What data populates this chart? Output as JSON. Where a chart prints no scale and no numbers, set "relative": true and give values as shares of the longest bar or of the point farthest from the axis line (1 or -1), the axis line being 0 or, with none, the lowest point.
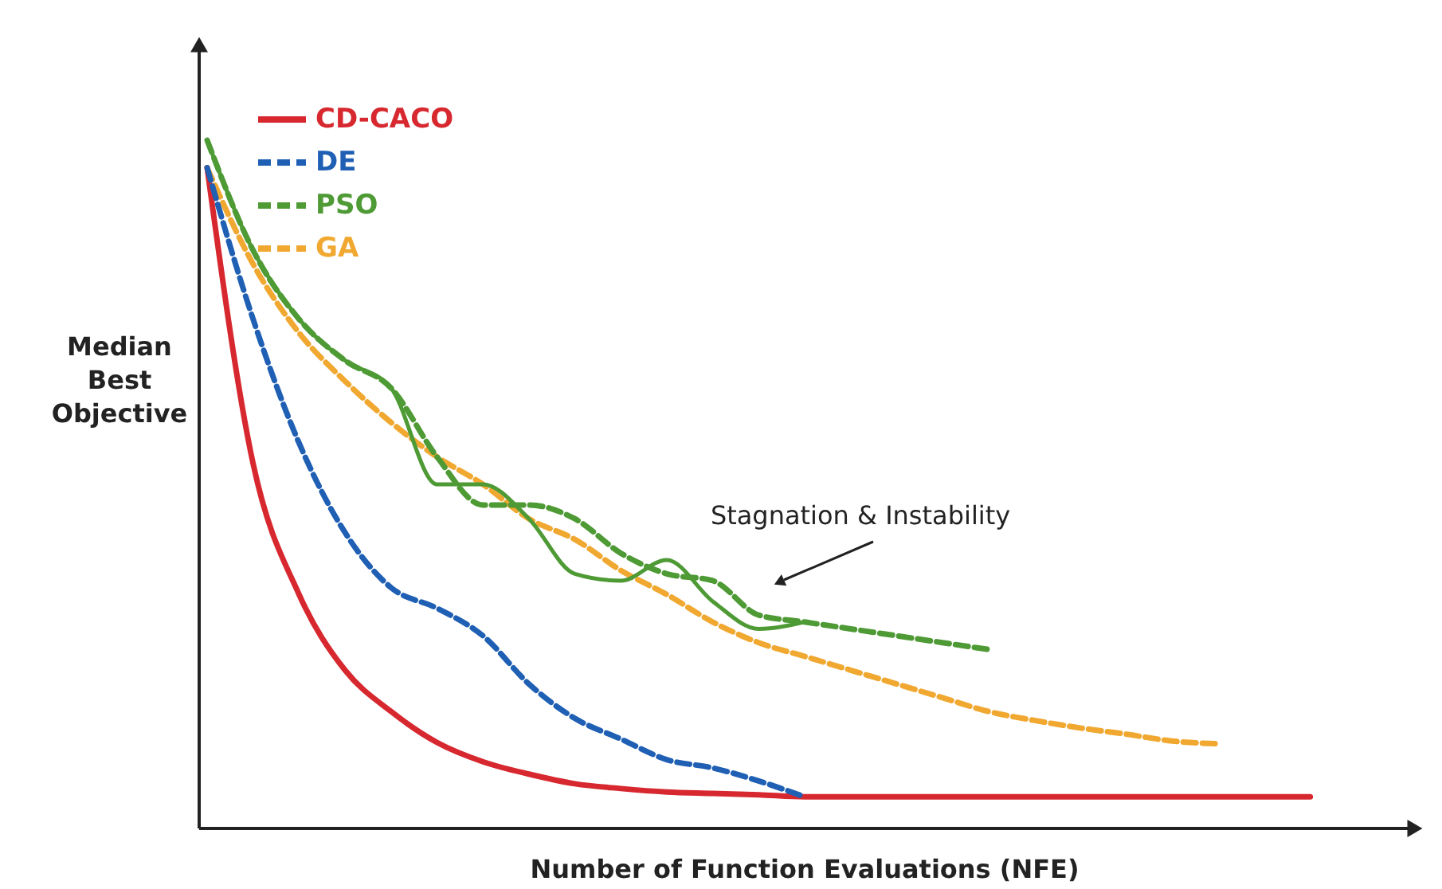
{
  "chart_data": {
    "type": "line",
    "relative": true,
    "xlabel": "Number of Function Evaluations (NFE)",
    "ylabel": "Median Best Objective",
    "legend": "top left",
    "grid": false,
    "marker": "none",
    "categories": [
      null,
      null,
      null,
      null,
      null,
      null,
      null,
      null,
      null,
      null,
      null,
      null,
      null,
      null,
      null,
      null,
      null,
      null,
      null,
      null,
      null,
      null,
      null,
      null,
      null
    ],
    "series": [
      {
        "name": "CD-CACO",
        "color": "#d7282f",
        "line_style": "solid",
        "values": [
          0.96,
          0.53,
          0.34,
          0.23,
          0.17,
          0.125,
          0.097,
          0.079,
          0.065,
          0.058,
          0.053,
          0.051,
          0.049,
          0.046,
          0.046,
          0.046,
          0.046,
          0.046,
          0.046,
          0.046,
          0.046,
          0.046,
          0.046,
          0.046,
          0.046
        ]
      },
      {
        "name": "DE",
        "color": "#1f5fb4",
        "line_style": "dashed",
        "values": [
          0.96,
          0.74,
          0.56,
          0.43,
          0.35,
          0.32,
          0.28,
          0.21,
          0.16,
          0.13,
          0.1,
          0.088,
          0.069,
          0.046,
          null,
          null,
          null,
          null,
          null,
          null,
          null,
          null,
          null,
          null,
          null
        ]
      },
      {
        "name": "PSO",
        "color": "#4e9a35",
        "line_style": "dashed",
        "values": [
          1.0,
          0.84,
          0.74,
          0.68,
          0.64,
          0.54,
          0.47,
          0.47,
          0.45,
          0.4,
          0.37,
          0.36,
          0.31,
          0.3,
          0.29,
          0.28,
          0.27,
          0.26,
          null,
          null,
          null,
          null,
          null,
          null,
          null
        ]
      },
      {
        "color": "#4e9a35",
        "line_style": "solid",
        "values": [
          1.0,
          0.84,
          0.74,
          0.68,
          0.64,
          0.5,
          0.5,
          0.45,
          0.37,
          0.36,
          0.39,
          0.33,
          0.29,
          0.3,
          null,
          null,
          null,
          null,
          null,
          null,
          null,
          null,
          null,
          null,
          null
        ]
      },
      {
        "name": "GA",
        "color": "#f0a830",
        "line_style": "dashed",
        "values": [
          0.96,
          0.82,
          0.72,
          0.65,
          0.59,
          0.54,
          0.5,
          0.45,
          0.42,
          0.375,
          0.34,
          0.3,
          0.27,
          0.25,
          0.23,
          0.21,
          0.19,
          0.17,
          0.157,
          0.146,
          0.137,
          0.127,
          0.123,
          null,
          null
        ]
      }
    ],
    "annotations": [
      "Stagnation & Instability"
    ]
  }
}
